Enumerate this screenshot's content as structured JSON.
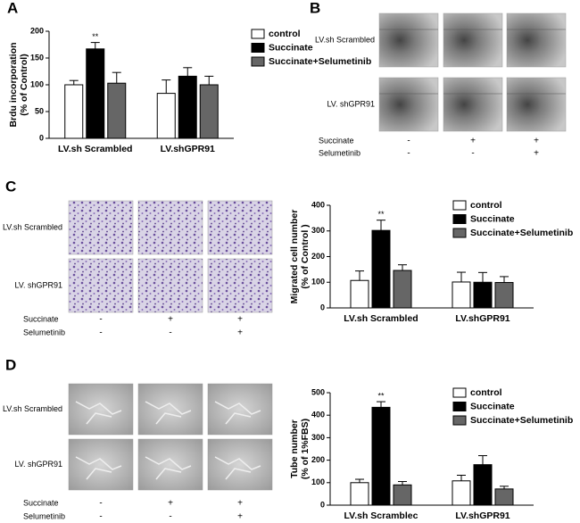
{
  "chart_data": [
    {
      "type": "bar",
      "panel": "A",
      "ylabel": [
        "Brdu incorporation",
        "(% of Control)"
      ],
      "annotation": "**",
      "categories": [
        "LV.sh Scrambled",
        "LV.shGPR91"
      ],
      "series": [
        {
          "name": "control",
          "color": "#ffffff",
          "values": [
            100,
            84
          ],
          "errors": [
            8,
            25
          ]
        },
        {
          "name": "Succinate",
          "color": "#000000",
          "values": [
            167,
            116
          ],
          "errors": [
            12,
            16
          ]
        },
        {
          "name": "Succinate+Selumetinib",
          "color": "#666666",
          "values": [
            103,
            100
          ],
          "errors": [
            20,
            16
          ]
        }
      ],
      "ylim": [
        0,
        200
      ],
      "yticks": [
        0,
        50,
        100,
        150,
        200
      ]
    },
    {
      "type": "bar",
      "panel": "C",
      "ylabel": [
        "Migrated cell number",
        "(% of Control )"
      ],
      "annotation": "**",
      "categories": [
        "LV.sh Scrambled",
        "LV.shGPR91"
      ],
      "series": [
        {
          "name": "control",
          "color": "#ffffff",
          "values": [
            107,
            101
          ],
          "errors": [
            37,
            38
          ]
        },
        {
          "name": "Succinate",
          "color": "#000000",
          "values": [
            302,
            100
          ],
          "errors": [
            40,
            38
          ]
        },
        {
          "name": "Succinate+Selumetinib",
          "color": "#666666",
          "values": [
            146,
            99
          ],
          "errors": [
            22,
            23
          ]
        }
      ],
      "ylim": [
        0,
        400
      ],
      "yticks": [
        0,
        100,
        200,
        300,
        400
      ]
    },
    {
      "type": "bar",
      "panel": "D",
      "ylabel": [
        "Tube number",
        "(% of 1%FBS)"
      ],
      "annotation": "**",
      "categories": [
        "LV.sh Scramblec",
        "LV.shGPR91"
      ],
      "series": [
        {
          "name": "control",
          "color": "#ffffff",
          "values": [
            100,
            108
          ],
          "errors": [
            15,
            25
          ]
        },
        {
          "name": "Succinate",
          "color": "#000000",
          "values": [
            435,
            180
          ],
          "errors": [
            25,
            40
          ]
        },
        {
          "name": "Succinate+Selumetinib",
          "color": "#666666",
          "values": [
            90,
            72
          ],
          "errors": [
            15,
            12
          ]
        }
      ],
      "ylim": [
        0,
        500
      ],
      "yticks": [
        0,
        100,
        200,
        300,
        400,
        500
      ]
    }
  ],
  "image_panels": [
    {
      "panel": "B",
      "row_labels": [
        "LV.sh Scrambled",
        "LV. shGPR91"
      ],
      "treatments": [
        {
          "name": "Succinate",
          "signs": [
            "-",
            "+",
            "+"
          ]
        },
        {
          "name": "Selumetinib",
          "signs": [
            "-",
            "-",
            "+"
          ]
        }
      ]
    },
    {
      "panel": "C",
      "row_labels": [
        "LV.sh Scrambled",
        "LV. shGPR91"
      ],
      "treatments": [
        {
          "name": "Succinate",
          "signs": [
            "-",
            "+",
            "+"
          ]
        },
        {
          "name": "Selumetinib",
          "signs": [
            "-",
            "-",
            "+"
          ]
        }
      ]
    },
    {
      "panel": "D",
      "row_labels": [
        "LV.sh Scrambled",
        "LV. shGPR91"
      ],
      "treatments": [
        {
          "name": "Succinate",
          "signs": [
            "-",
            "+",
            "+"
          ]
        },
        {
          "name": "Selumetinib",
          "signs": [
            "-",
            "-",
            "+"
          ]
        }
      ]
    }
  ]
}
